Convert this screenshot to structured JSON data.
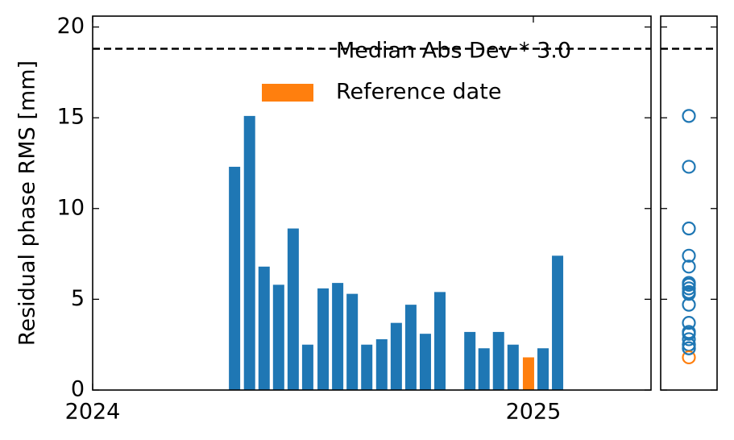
{
  "chart_data": {
    "type": "bar",
    "ylabel": "Residual phase RMS [mm]",
    "x": [
      2024.322,
      2024.356,
      2024.389,
      2024.422,
      2024.455,
      2024.488,
      2024.523,
      2024.556,
      2024.589,
      2024.622,
      2024.656,
      2024.689,
      2024.722,
      2024.755,
      2024.788,
      2024.856,
      2024.888,
      2024.921,
      2024.954,
      2024.989,
      2025.022,
      2025.055
    ],
    "values": [
      12.3,
      15.1,
      6.8,
      5.8,
      8.9,
      2.5,
      5.6,
      5.9,
      5.3,
      2.5,
      2.8,
      3.7,
      4.7,
      3.1,
      5.4,
      3.2,
      2.3,
      3.2,
      2.5,
      1.8,
      2.3,
      7.4
    ],
    "colors": [
      "#1f77b4",
      "#1f77b4",
      "#1f77b4",
      "#1f77b4",
      "#1f77b4",
      "#1f77b4",
      "#1f77b4",
      "#1f77b4",
      "#1f77b4",
      "#1f77b4",
      "#1f77b4",
      "#1f77b4",
      "#1f77b4",
      "#1f77b4",
      "#1f77b4",
      "#1f77b4",
      "#1f77b4",
      "#1f77b4",
      "#1f77b4",
      "#ff7f0e",
      "#1f77b4",
      "#1f77b4"
    ],
    "xlim": [
      2024,
      2025.267
    ],
    "xticks": [
      2024,
      2025
    ],
    "ylim": [
      0,
      20.6
    ],
    "yticks": [
      0,
      5,
      10,
      15,
      20
    ],
    "threshold": {
      "name": "Median Abs Dev * 3.0",
      "value": 18.8,
      "color": "#000000"
    },
    "reference": {
      "name": "Reference date",
      "color": "#ff7f0e"
    }
  }
}
